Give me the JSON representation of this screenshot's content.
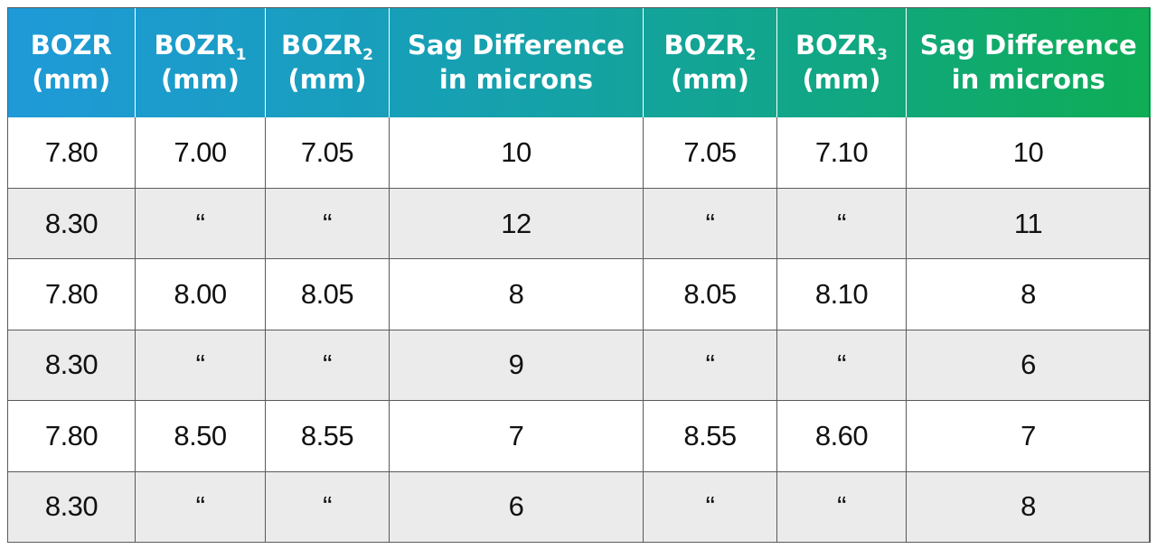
{
  "header": {
    "col1": {
      "line1": "BOZR",
      "line2": "(mm)"
    },
    "col2": {
      "line1": "BOZR",
      "sub": "1",
      "line2": "(mm)"
    },
    "col3": {
      "line1": "BOZR",
      "sub": "2",
      "line2": "(mm)"
    },
    "col4": {
      "line1": "Sag Difference",
      "line2": "in microns"
    },
    "col5": {
      "line1": "BOZR",
      "sub": "2",
      "line2": "(mm)"
    },
    "col6": {
      "line1": "BOZR",
      "sub": "3",
      "line2": "(mm)"
    },
    "col7": {
      "line1": "Sag Difference",
      "line2": "in microns"
    }
  },
  "rows": [
    [
      "7.80",
      "7.00",
      "7.05",
      "10",
      "7.05",
      "7.10",
      "10"
    ],
    [
      "8.30",
      "“",
      "“",
      "12",
      "“",
      "“",
      "11"
    ],
    [
      "7.80",
      "8.00",
      "8.05",
      "8",
      "8.05",
      "8.10",
      "8"
    ],
    [
      "8.30",
      "“",
      "“",
      "9",
      "“",
      "“",
      "6"
    ],
    [
      "7.80",
      "8.50",
      "8.55",
      "7",
      "8.55",
      "8.60",
      "7"
    ],
    [
      "8.30",
      "“",
      "“",
      "6",
      "“",
      "“",
      "8"
    ]
  ],
  "colors": {
    "header_start": "#1f9ad8",
    "header_end": "#0ead55",
    "row_alt": "#ebebeb",
    "grid": "#5a5a5a"
  }
}
